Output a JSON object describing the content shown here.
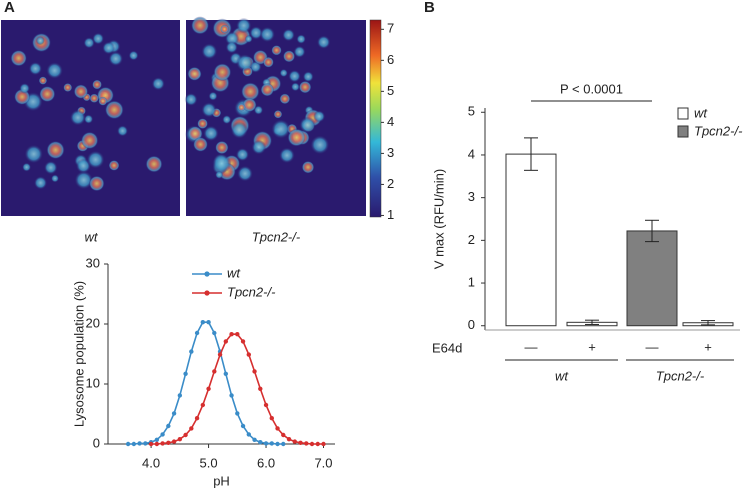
{
  "chart_data": [
    {
      "type": "image",
      "panel": "A",
      "images": [
        "wt",
        "Tpcn2-/-"
      ],
      "colorbar": {
        "lim": [
          0.95,
          7.3
        ],
        "ticks": [
          1,
          2,
          3,
          4,
          5,
          6,
          7
        ]
      }
    },
    {
      "type": "line",
      "xlabel": "pH",
      "ylabel": "Lysosome population (%)",
      "xlim": [
        3.25,
        7.2
      ],
      "ylim": [
        0,
        30
      ],
      "xticks": [
        {
          "value": 4,
          "label": "4.0"
        },
        {
          "value": 5,
          "label": "5.0"
        },
        {
          "value": 6,
          "label": "6.0"
        },
        {
          "value": 7,
          "label": "7.0"
        }
      ],
      "yticks": [
        0,
        10,
        20,
        30
      ],
      "series": [
        {
          "name": "wt",
          "color": "#3a8cc8",
          "x": [
            3.6,
            3.7,
            3.8,
            3.9,
            4.0,
            4.1,
            4.2,
            4.3,
            4.4,
            4.5,
            4.6,
            4.7,
            4.8,
            4.9,
            5.0,
            5.1,
            5.2,
            5.3,
            5.4,
            5.5,
            5.6,
            5.7,
            5.8,
            5.9,
            6.0,
            6.1,
            6.2,
            6.3
          ],
          "values": [
            0,
            0,
            0.1,
            0.1,
            0.3,
            0.7,
            1.6,
            3.0,
            5.1,
            8.1,
            11.7,
            15.4,
            18.5,
            20.3,
            20.3,
            18.5,
            15.4,
            11.7,
            8.1,
            5.1,
            3.0,
            1.6,
            0.7,
            0.3,
            0.1,
            0.1,
            0,
            0
          ]
        },
        {
          "name": "Tpcn2-/-",
          "color": "#d62f2f",
          "x": [
            4.0,
            4.1,
            4.2,
            4.3,
            4.4,
            4.5,
            4.6,
            4.7,
            4.8,
            4.9,
            5.0,
            5.1,
            5.2,
            5.3,
            5.4,
            5.5,
            5.6,
            5.7,
            5.8,
            5.9,
            6.0,
            6.1,
            6.2,
            6.3,
            6.4,
            6.5,
            6.6,
            6.7,
            6.8,
            6.9,
            7.0
          ],
          "values": [
            0,
            0,
            0.1,
            0.2,
            0.4,
            0.8,
            1.5,
            2.6,
            4.3,
            6.5,
            9.2,
            12.1,
            14.9,
            17.1,
            18.3,
            18.3,
            17.1,
            14.9,
            12.1,
            9.2,
            6.5,
            4.3,
            2.6,
            1.5,
            0.8,
            0.4,
            0.2,
            0.1,
            0,
            0,
            0
          ]
        }
      ]
    },
    {
      "type": "bar",
      "panel": "B",
      "ylabel": "V max (RFU/min)",
      "xlabel": "E64d",
      "categories": [
        "—",
        "+",
        "—",
        "+"
      ],
      "groups": [
        "wt",
        "Tpcn2-/-"
      ],
      "values": [
        4.02,
        0.08,
        2.22,
        0.07
      ],
      "errors": [
        0.38,
        0.05,
        0.25,
        0.05
      ],
      "colors": [
        "#ffffff",
        "#ffffff",
        "#808080",
        "#ffffff"
      ],
      "ylim": [
        -0.1,
        5.1
      ],
      "yticks": [
        0,
        1,
        2,
        3,
        4,
        5
      ],
      "annotation": "P < 0.0001",
      "legend": [
        {
          "name": "wt",
          "color": "#ffffff"
        },
        {
          "name": "Tpcn2-/-",
          "color": "#808080"
        }
      ]
    }
  ]
}
